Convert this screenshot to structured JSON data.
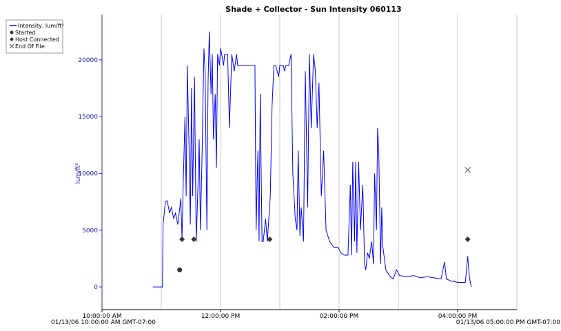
{
  "chart_data": {
    "type": "line",
    "title": "Shade + Collector - Sun Intensity 060113",
    "ylabel": "lum/ft²",
    "xlim": [
      10,
      17
    ],
    "xticks": [
      {
        "value": 10,
        "label": "10:00:00 AM"
      },
      {
        "value": 12,
        "label": "12:00:00 PM"
      },
      {
        "value": 14,
        "label": "02:00:00 PM"
      },
      {
        "value": 16,
        "label": "04:00:00 PM"
      }
    ],
    "x_gridlines": [
      11,
      12,
      13,
      14,
      15,
      16,
      17
    ],
    "ylim": [
      -2000,
      24000
    ],
    "yticks": [
      0,
      5000,
      10000,
      15000,
      20000
    ],
    "annotations": [
      "01/13/06 10:00:00 AM GMT-07:00",
      "01/13/06 05:00:00 PM GMT-07:00"
    ],
    "legend": "top-left",
    "series": [
      {
        "name": "Intensity, lum/ft²",
        "color": "#0000ff",
        "marker": "line",
        "x": [
          10.86,
          11.01,
          11.02,
          11.03,
          11.07,
          11.1,
          11.14,
          11.17,
          11.21,
          11.24,
          11.28,
          11.33,
          11.35,
          11.37,
          11.4,
          11.42,
          11.44,
          11.47,
          11.49,
          11.51,
          11.53,
          11.56,
          11.59,
          11.62,
          11.64,
          11.66,
          11.69,
          11.72,
          11.74,
          11.77,
          11.79,
          11.81,
          11.84,
          11.86,
          11.88,
          11.91,
          11.93,
          11.95,
          11.98,
          12.0,
          12.02,
          12.05,
          12.07,
          12.12,
          12.15,
          12.19,
          12.23,
          12.27,
          12.29,
          12.58,
          12.6,
          12.63,
          12.65,
          12.67,
          12.7,
          12.72,
          12.76,
          12.79,
          12.84,
          12.87,
          12.9,
          12.93,
          12.98,
          13.0,
          13.06,
          13.08,
          13.1,
          13.15,
          13.19,
          13.22,
          13.26,
          13.29,
          13.31,
          13.34,
          13.36,
          13.4,
          13.43,
          13.47,
          13.5,
          13.53,
          13.57,
          13.6,
          13.63,
          13.66,
          13.7,
          13.74,
          13.78,
          13.84,
          13.91,
          13.98,
          14.03,
          14.09,
          14.15,
          14.19,
          14.21,
          14.23,
          14.26,
          14.28,
          14.3,
          14.33,
          14.36,
          14.4,
          14.43,
          14.45,
          14.48,
          14.51,
          14.55,
          14.58,
          14.6,
          14.63,
          14.65,
          14.67,
          14.7,
          14.72,
          14.74,
          14.79,
          14.85,
          14.91,
          14.97,
          15.02,
          15.14,
          15.26,
          15.37,
          15.49,
          15.6,
          15.72,
          15.78,
          15.81,
          15.9,
          16.01,
          16.13,
          16.15,
          16.17,
          16.2,
          16.23
        ],
        "values": [
          0,
          0,
          0,
          5500,
          7500,
          7600,
          6500,
          7000,
          6000,
          6500,
          5500,
          7800,
          4200,
          9000,
          15000,
          8000,
          19500,
          12000,
          5500,
          17500,
          8000,
          18500,
          4000,
          9000,
          13000,
          5000,
          12000,
          21000,
          19000,
          5000,
          18000,
          22500,
          17000,
          20500,
          13000,
          17000,
          10500,
          20500,
          19500,
          21000,
          20500,
          19500,
          20500,
          20500,
          14000,
          20500,
          19000,
          20500,
          19500,
          19500,
          5000,
          12000,
          4000,
          17000,
          4000,
          4000,
          6000,
          4000,
          8000,
          16000,
          19500,
          19500,
          18500,
          19500,
          19500,
          19000,
          19500,
          19500,
          20500,
          10000,
          6000,
          5000,
          12000,
          4500,
          7000,
          4000,
          19000,
          7000,
          20500,
          14000,
          20500,
          19000,
          14000,
          18000,
          8000,
          12000,
          5000,
          4000,
          3500,
          3500,
          3000,
          2800,
          2800,
          9000,
          2800,
          11000,
          4000,
          11000,
          3000,
          11000,
          5000,
          9000,
          2000,
          1500,
          3000,
          2500,
          4000,
          2000,
          10000,
          5000,
          14000,
          12000,
          2000,
          7000,
          3500,
          1500,
          1000,
          700,
          1500,
          1000,
          900,
          1000,
          800,
          900,
          800,
          700,
          2200,
          700,
          500,
          400,
          400,
          1500,
          2700,
          800,
          0
        ]
      },
      {
        "name": "Started",
        "color": "#333333",
        "marker": "circle",
        "x": [
          11.31
        ],
        "values": [
          1500
        ]
      },
      {
        "name": "Host Connected",
        "color": "#333333",
        "marker": "diamond",
        "x": [
          11.35,
          11.55,
          12.83,
          16.17
        ],
        "values": [
          4200,
          4200,
          4200,
          4200
        ]
      },
      {
        "name": "End Of File",
        "color": "#555555",
        "marker": "cross",
        "x": [
          16.17
        ],
        "values": [
          10300
        ]
      }
    ]
  }
}
